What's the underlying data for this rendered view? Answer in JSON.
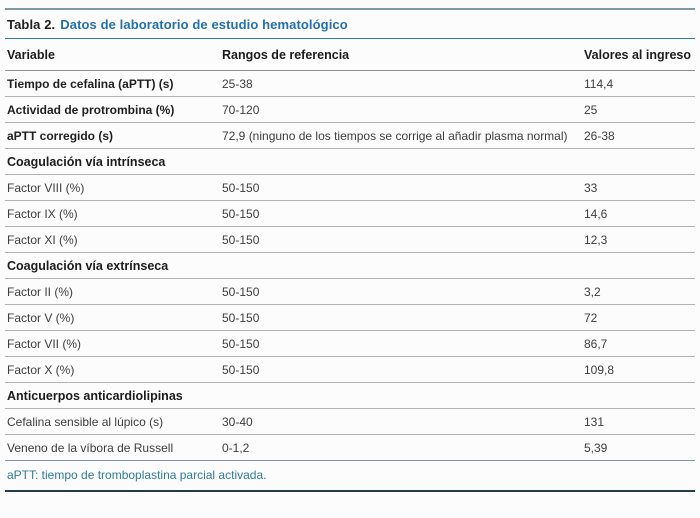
{
  "table": {
    "title_prefix": "Tabla 2.",
    "title": "Datos de laboratorio de estudio hematológico",
    "columns": [
      "Variable",
      "Rangos de referencia",
      "Valores al ingreso"
    ],
    "rows": [
      {
        "type": "data",
        "bold": true,
        "cells": [
          "Tiempo de cefalina (aPTT) (s)",
          "25-38",
          "114,4"
        ]
      },
      {
        "type": "data",
        "bold": true,
        "cells": [
          "Actividad de protrombina (%)",
          "70-120",
          "25"
        ]
      },
      {
        "type": "data",
        "bold": true,
        "cells": [
          "aPTT corregido (s)",
          "72,9 (ninguno de los tiempos se corrige al añadir plasma normal)",
          "26-38"
        ]
      },
      {
        "type": "section",
        "label": "Coagulación vía intrínseca"
      },
      {
        "type": "data",
        "bold": false,
        "cells": [
          "Factor VIII (%)",
          "50-150",
          "33"
        ]
      },
      {
        "type": "data",
        "bold": false,
        "cells": [
          "Factor IX (%)",
          "50-150",
          "14,6"
        ]
      },
      {
        "type": "data",
        "bold": false,
        "cells": [
          "Factor XI (%)",
          "50-150",
          "12,3"
        ]
      },
      {
        "type": "section",
        "label": "Coagulación vía extrínseca"
      },
      {
        "type": "data",
        "bold": false,
        "cells": [
          "Factor II (%)",
          "50-150",
          "3,2"
        ]
      },
      {
        "type": "data",
        "bold": false,
        "cells": [
          "Factor V (%)",
          "50-150",
          "72"
        ]
      },
      {
        "type": "data",
        "bold": false,
        "cells": [
          "Factor VII (%)",
          "50-150",
          "86,7"
        ]
      },
      {
        "type": "data",
        "bold": false,
        "cells": [
          "Factor X (%)",
          "50-150",
          "109,8"
        ]
      },
      {
        "type": "section",
        "label": "Anticuerpos anticardiolipinas"
      },
      {
        "type": "data",
        "bold": false,
        "cells": [
          "Cefalina sensible al lúpico (s)",
          "30-40",
          "131"
        ]
      },
      {
        "type": "data",
        "bold": false,
        "cells": [
          "Veneno de la víbora de Russell",
          "0-1,2",
          "5,39"
        ]
      }
    ],
    "footnote": "aPTT: tiempo de tromboplastina parcial activada.",
    "colors": {
      "title_blue": "#2470ab",
      "footnote_teal": "#2e7b99",
      "top_rule": "#7e98a6",
      "title_rule": "#2e7d9c",
      "header_rule": "#8f8f8f",
      "row_rule": "#b3b3b3",
      "bottom_rule": "#223c4c"
    }
  }
}
